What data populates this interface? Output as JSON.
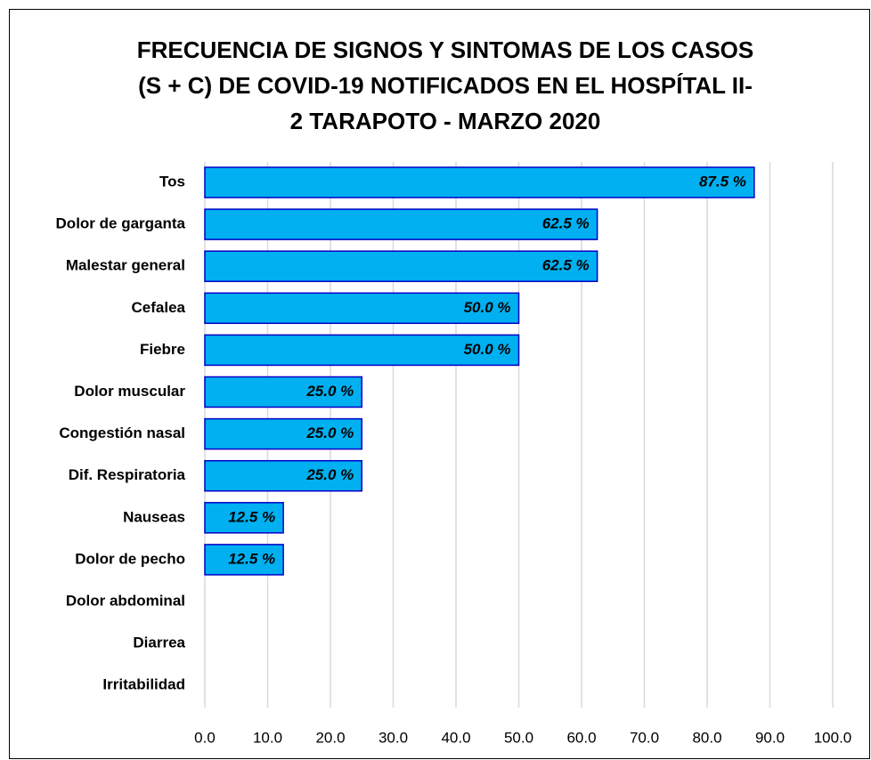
{
  "chart_data": {
    "type": "bar",
    "orientation": "horizontal",
    "title": "FRECUENCIA DE SIGNOS Y SINTOMAS DE LOS CASOS (S + C) DE COVID-19 NOTIFICADOS EN EL HOSPÍTAL II-2 TARAPOTO - MARZO 2020",
    "categories": [
      "Tos",
      "Dolor de garganta",
      "Malestar general",
      "Cefalea",
      "Fiebre",
      "Dolor muscular",
      "Congestión nasal",
      "Dif. Respiratoria",
      "Nauseas",
      "Dolor de pecho",
      "Dolor abdominal",
      "Diarrea",
      "Irritabilidad"
    ],
    "values": [
      87.5,
      62.5,
      62.5,
      50.0,
      50.0,
      25.0,
      25.0,
      25.0,
      12.5,
      12.5,
      0,
      0,
      0
    ],
    "value_labels": [
      "87.5 %",
      "62.5 %",
      "62.5 %",
      "50.0 %",
      "50.0 %",
      "25.0 %",
      "25.0 %",
      "25.0 %",
      "12.5 %",
      "12.5 %",
      null,
      null,
      null
    ],
    "color": "#00b0f0",
    "edge_color": "#0000c8",
    "xlim": [
      0,
      100
    ],
    "xticks": [
      {
        "value": 0,
        "label": "0.0"
      },
      {
        "value": 10,
        "label": "10.0"
      },
      {
        "value": 20,
        "label": "20.0"
      },
      {
        "value": 30,
        "label": "30.0"
      },
      {
        "value": 40,
        "label": "40.0"
      },
      {
        "value": 50,
        "label": "50.0"
      },
      {
        "value": 60,
        "label": "60.0"
      },
      {
        "value": 70,
        "label": "70.0"
      },
      {
        "value": 80,
        "label": "80.0"
      },
      {
        "value": 90,
        "label": "90.0"
      },
      {
        "value": 100,
        "label": "100.0"
      }
    ],
    "grid": true
  }
}
